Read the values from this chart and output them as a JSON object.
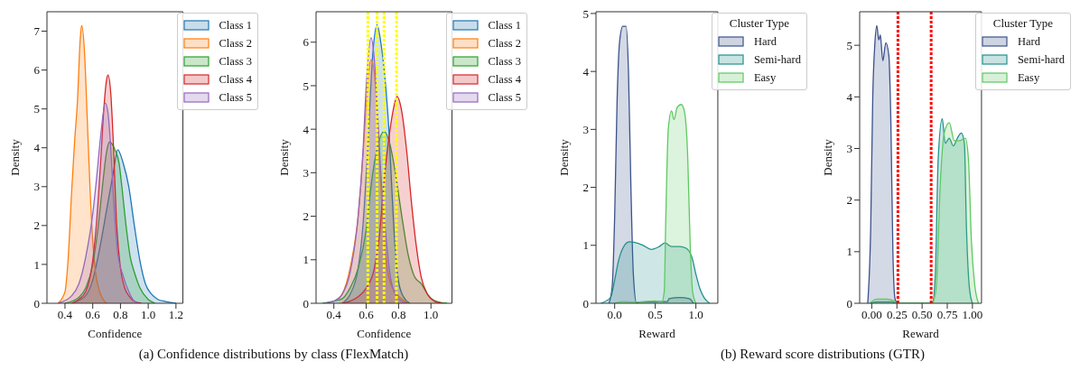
{
  "chart_data": [
    {
      "type": "area",
      "xlabel": "Confidence",
      "ylabel": "Density",
      "xlim": [
        0.27,
        1.25
      ],
      "ylim": [
        0,
        7.5
      ],
      "xticks": [
        {
          "value": 0.4,
          "label": "0.4"
        },
        {
          "value": 0.6,
          "label": "0.6"
        },
        {
          "value": 0.8,
          "label": "0.8"
        },
        {
          "value": 1.0,
          "label": "1.0"
        },
        {
          "value": 1.2,
          "label": "1.2"
        }
      ],
      "yticks": [
        0,
        1,
        2,
        3,
        4,
        5,
        6,
        7
      ],
      "legend": "top right",
      "annotations": [
        "(a)  Confidence distributions by class (FlexMatch)"
      ],
      "series": [
        {
          "name": "Class 1",
          "color": "#1f77b4",
          "x": [
            0.45,
            0.55,
            0.6,
            0.65,
            0.7,
            0.75,
            0.78,
            0.82,
            0.86,
            0.9,
            0.94,
            0.98,
            1.02,
            1.07,
            1.12,
            1.2
          ],
          "values": [
            0,
            0.2,
            0.6,
            1.4,
            2.4,
            3.4,
            3.95,
            3.6,
            3.0,
            2.0,
            1.1,
            0.5,
            0.25,
            0.1,
            0.05,
            0
          ]
        },
        {
          "name": "Class 2",
          "color": "#ff7f0e",
          "x": [
            0.35,
            0.4,
            0.42,
            0.45,
            0.47,
            0.49,
            0.51,
            0.52,
            0.54,
            0.56,
            0.58,
            0.6,
            0.62,
            0.65,
            0.7
          ],
          "values": [
            0,
            0.3,
            1.0,
            3.0,
            4.2,
            5.2,
            6.8,
            7.15,
            6.5,
            4.8,
            3.0,
            1.6,
            0.8,
            0.3,
            0
          ]
        },
        {
          "name": "Class 3",
          "color": "#2ca02c",
          "x": [
            0.4,
            0.5,
            0.55,
            0.6,
            0.64,
            0.67,
            0.7,
            0.72,
            0.76,
            0.79,
            0.81,
            0.84,
            0.87,
            0.9,
            0.94,
            1.0,
            1.05
          ],
          "values": [
            0,
            0.15,
            0.4,
            1.0,
            2.0,
            3.0,
            3.9,
            4.15,
            3.95,
            3.6,
            3.0,
            2.0,
            1.2,
            0.8,
            0.4,
            0.1,
            0
          ]
        },
        {
          "name": "Class 4",
          "color": "#d62728",
          "x": [
            0.45,
            0.5,
            0.55,
            0.6,
            0.63,
            0.66,
            0.68,
            0.7,
            0.71,
            0.73,
            0.75,
            0.77,
            0.8,
            0.83,
            0.87,
            0.9,
            0.95
          ],
          "values": [
            0,
            0.1,
            0.3,
            1.1,
            2.2,
            3.8,
            5.0,
            5.75,
            5.87,
            5.4,
            4.0,
            2.2,
            0.9,
            0.4,
            0.15,
            0.05,
            0
          ]
        },
        {
          "name": "Class 5",
          "color": "#9467bd",
          "x": [
            0.35,
            0.45,
            0.5,
            0.55,
            0.6,
            0.63,
            0.66,
            0.69,
            0.71,
            0.73,
            0.75,
            0.78,
            0.82,
            0.86,
            0.9,
            0.93
          ],
          "values": [
            0,
            0.2,
            0.5,
            1.2,
            2.3,
            3.3,
            4.4,
            5.15,
            4.9,
            4.0,
            2.7,
            1.3,
            0.7,
            0.3,
            0.05,
            0
          ]
        }
      ]
    },
    {
      "type": "area",
      "xlabel": "Confidence",
      "ylabel": "Density",
      "xlim": [
        0.29,
        1.13
      ],
      "ylim": [
        0,
        6.7
      ],
      "xticks": [
        {
          "value": 0.4,
          "label": "0.4"
        },
        {
          "value": 0.6,
          "label": "0.6"
        },
        {
          "value": 0.8,
          "label": "0.8"
        },
        {
          "value": 1.0,
          "label": "1.0"
        }
      ],
      "yticks": [
        0,
        1,
        2,
        3,
        4,
        5,
        6
      ],
      "legend": "top right",
      "ref_lines": [
        {
          "axis": "x",
          "value": 0.61,
          "color": "#ffff00",
          "line_style": "dotted"
        },
        {
          "axis": "x",
          "value": 0.667,
          "color": "#ffff00",
          "line_style": "dotted"
        },
        {
          "axis": "x",
          "value": 0.71,
          "color": "#ffff00",
          "line_style": "dotted"
        },
        {
          "axis": "x",
          "value": 0.787,
          "color": "#ffff00",
          "line_style": "dotted"
        }
      ],
      "series": [
        {
          "name": "Class 1",
          "color": "#1f77b4",
          "x": [
            0.45,
            0.5,
            0.55,
            0.58,
            0.61,
            0.64,
            0.667,
            0.69,
            0.72,
            0.74,
            0.76,
            0.78,
            0.8,
            0.83,
            0.87
          ],
          "values": [
            0,
            0.2,
            0.8,
            1.8,
            3.6,
            5.7,
            6.4,
            6.0,
            5.0,
            4.0,
            2.5,
            1.2,
            0.5,
            0.15,
            0
          ]
        },
        {
          "name": "Class 2",
          "color": "#ff7f0e",
          "x": [
            0.43,
            0.45,
            0.5,
            0.55,
            0.58,
            0.6,
            0.63,
            0.65,
            0.67,
            0.69,
            0.71,
            0.74,
            0.78,
            0.82,
            0.86
          ],
          "values": [
            0.1,
            0.2,
            0.8,
            2.0,
            3.4,
            4.6,
            5.6,
            5.3,
            4.2,
            2.7,
            1.5,
            0.6,
            0.25,
            0.1,
            0
          ]
        },
        {
          "name": "Class 3",
          "color": "#2ca02c",
          "x": [
            0.33,
            0.4,
            0.45,
            0.5,
            0.55,
            0.6,
            0.63,
            0.67,
            0.71,
            0.75,
            0.78,
            0.82,
            0.86,
            0.9,
            0.94,
            0.98,
            1.03,
            1.1
          ],
          "values": [
            0,
            0.05,
            0.1,
            0.35,
            0.8,
            1.7,
            2.7,
            3.6,
            3.95,
            3.6,
            3.0,
            2.0,
            1.1,
            0.6,
            0.45,
            0.2,
            0.05,
            0
          ]
        },
        {
          "name": "Class 4",
          "color": "#d62728",
          "x": [
            0.45,
            0.5,
            0.55,
            0.6,
            0.65,
            0.68,
            0.71,
            0.74,
            0.77,
            0.79,
            0.82,
            0.85,
            0.88,
            0.91,
            0.94,
            0.98,
            1.02,
            1.07
          ],
          "values": [
            0,
            0.05,
            0.15,
            0.35,
            0.8,
            1.5,
            2.8,
            3.8,
            4.5,
            4.75,
            4.4,
            3.5,
            2.3,
            1.3,
            0.6,
            0.2,
            0.05,
            0
          ]
        },
        {
          "name": "Class 5",
          "color": "#9467bd",
          "x": [
            0.35,
            0.4,
            0.45,
            0.5,
            0.55,
            0.58,
            0.6,
            0.63,
            0.65,
            0.67,
            0.69,
            0.72,
            0.75,
            0.78,
            0.82,
            0.85
          ],
          "values": [
            0,
            0.05,
            0.2,
            0.7,
            2.0,
            3.5,
            5.0,
            6.1,
            5.6,
            4.4,
            3.0,
            1.6,
            0.6,
            0.2,
            0.05,
            0
          ]
        }
      ]
    },
    {
      "type": "area",
      "xlabel": "Reward",
      "ylabel": "Density",
      "xlim": [
        -0.23,
        1.27
      ],
      "ylim": [
        0,
        5.03
      ],
      "xticks": [
        {
          "value": 0,
          "label": "0.0"
        },
        {
          "value": 0.5,
          "label": "0.5"
        },
        {
          "value": 1.0,
          "label": "1.0"
        }
      ],
      "yticks": [
        0,
        1,
        2,
        3,
        4,
        5
      ],
      "legend": "top right",
      "legend_title": "Cluster Type",
      "annotations": [
        "(b)  Reward score distributions (GTR)"
      ],
      "series": [
        {
          "name": "Hard",
          "color": "#3b528b",
          "x": [
            -0.07,
            -0.03,
            0.0,
            0.03,
            0.06,
            0.1,
            0.14,
            0.17,
            0.2,
            0.23,
            0.27,
            0.3,
            0.5,
            0.65,
            0.67,
            0.8,
            0.92,
            0.97
          ],
          "values": [
            0,
            0.3,
            1.5,
            3.5,
            4.5,
            4.78,
            4.78,
            4.0,
            2.0,
            0.5,
            0,
            0.02,
            0.03,
            0.03,
            0.08,
            0.1,
            0.08,
            0
          ]
        },
        {
          "name": "Semi-hard",
          "color": "#21918c",
          "x": [
            -0.17,
            -0.05,
            0.0,
            0.05,
            0.1,
            0.18,
            0.25,
            0.35,
            0.45,
            0.55,
            0.62,
            0.7,
            0.8,
            0.88,
            0.95,
            1.0,
            1.05,
            1.1,
            1.17
          ],
          "values": [
            0,
            0.1,
            0.4,
            0.75,
            0.95,
            1.06,
            1.05,
            1.0,
            0.93,
            0.98,
            1.04,
            0.98,
            0.98,
            0.95,
            0.8,
            0.5,
            0.25,
            0.1,
            0
          ]
        },
        {
          "name": "Easy",
          "color": "#5ec962",
          "x": [
            0.0,
            0.1,
            0.25,
            0.5,
            0.58,
            0.61,
            0.63,
            0.66,
            0.7,
            0.73,
            0.77,
            0.82,
            0.86,
            0.9,
            0.93,
            0.96,
            1.0
          ],
          "values": [
            0,
            0.03,
            0.02,
            0.04,
            0.02,
            0.2,
            1.5,
            3.0,
            3.32,
            3.17,
            3.38,
            3.43,
            3.3,
            2.5,
            1.0,
            0.2,
            0
          ]
        }
      ]
    },
    {
      "type": "area",
      "xlabel": "Reward",
      "ylabel": "Density",
      "xlim": [
        -0.12,
        1.09
      ],
      "ylim": [
        0,
        5.65
      ],
      "xticks": [
        {
          "value": 0,
          "label": "0.00"
        },
        {
          "value": 0.25,
          "label": "0.25"
        },
        {
          "value": 0.5,
          "label": "0.50"
        },
        {
          "value": 0.75,
          "label": "0.75"
        },
        {
          "value": 1.0,
          "label": "1.00"
        }
      ],
      "yticks": [
        0,
        1,
        2,
        3,
        4,
        5
      ],
      "legend": "top right",
      "legend_title": "Cluster Type",
      "ref_lines": [
        {
          "axis": "x",
          "value": 0.26,
          "color": "#ff0000",
          "line_style": "dotted"
        },
        {
          "axis": "x",
          "value": 0.59,
          "color": "#ff0000",
          "line_style": "dotted"
        }
      ],
      "series": [
        {
          "name": "Hard",
          "color": "#3b528b",
          "x": [
            -0.04,
            -0.01,
            0.01,
            0.03,
            0.05,
            0.07,
            0.085,
            0.11,
            0.14,
            0.17,
            0.19,
            0.21,
            0.23,
            0.25
          ],
          "values": [
            0,
            1.5,
            4.0,
            5.0,
            5.38,
            5.1,
            5.2,
            4.7,
            5.05,
            4.8,
            3.5,
            1.0,
            0.1,
            0
          ]
        },
        {
          "name": "Semi-hard",
          "color": "#21918c",
          "x": [
            -0.02,
            0.05,
            0.2,
            0.24,
            0.6,
            0.63,
            0.66,
            0.7,
            0.73,
            0.77,
            0.81,
            0.85,
            0.89,
            0.92,
            0.94,
            0.97,
            1.0
          ],
          "values": [
            0,
            0.03,
            0.03,
            0,
            0,
            0.5,
            2.8,
            3.58,
            3.1,
            3.2,
            3.05,
            3.2,
            3.3,
            3.1,
            1.5,
            0.3,
            0
          ]
        },
        {
          "name": "Easy",
          "color": "#5ec962",
          "x": [
            -0.02,
            0.05,
            0.15,
            0.22,
            0.25,
            0.6,
            0.64,
            0.68,
            0.72,
            0.77,
            0.82,
            0.87,
            0.93,
            0.96,
            0.99,
            1.02,
            1.06
          ],
          "values": [
            0,
            0.08,
            0.08,
            0.05,
            0,
            0,
            0.3,
            2.3,
            3.3,
            3.5,
            3.15,
            3.15,
            3.2,
            2.8,
            1.2,
            0.4,
            0
          ]
        }
      ]
    }
  ]
}
